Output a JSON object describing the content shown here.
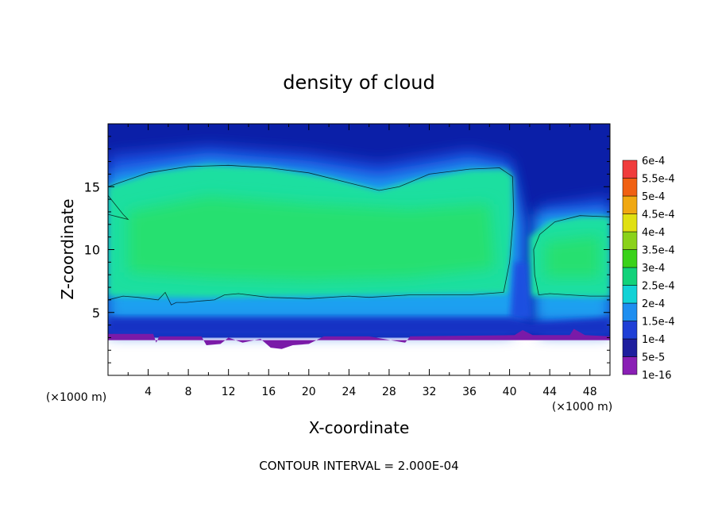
{
  "chart_data": {
    "type": "heatmap",
    "title": "density of cloud",
    "xlabel": "X-coordinate",
    "ylabel": "Z-coordinate",
    "x_unit": "(×1000 m)",
    "x_unit_right": "(×1000 m)",
    "xlim": [
      0,
      50
    ],
    "ylim": [
      0,
      20
    ],
    "xticks": [
      4,
      8,
      12,
      16,
      20,
      24,
      28,
      32,
      36,
      40,
      44,
      48
    ],
    "yticks": [
      5,
      10,
      15
    ],
    "contour_note": "CONTOUR INTERVAL = 2.000E-04",
    "colorbar": {
      "labels": [
        "1e-16",
        "5e-5",
        "1e-4",
        "1.5e-4",
        "2e-4",
        "2.5e-4",
        "3e-4",
        "3.5e-4",
        "4e-4",
        "4.5e-4",
        "5e-4",
        "5.5e-4",
        "6e-4"
      ],
      "colors": [
        "#8a1fb5",
        "#1e1e9e",
        "#1f3fd6",
        "#1e8ef0",
        "#12d2d6",
        "#12d27a",
        "#3ad21a",
        "#8ad21a",
        "#e0e012",
        "#f0a812",
        "#f06012",
        "#f03c3c",
        "#f5a0a0"
      ]
    },
    "field_colors": {
      "low": "#0b1fa8",
      "edge": "#1f4fe0",
      "mid": "#1fa0f0",
      "high": "#1adfa0",
      "peak": "#28e070",
      "base": "#7a1aa8",
      "empty": "#ffffff"
    }
  }
}
